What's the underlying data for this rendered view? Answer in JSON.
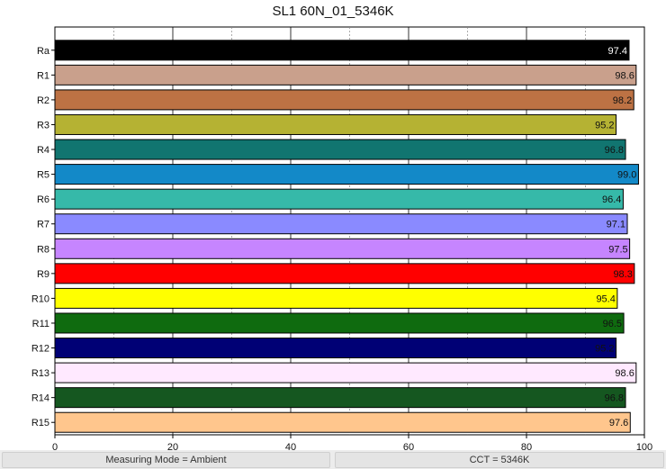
{
  "title": "SL1 60N_01_5346K",
  "status": {
    "left": "Measuring Mode = Ambient",
    "right": "CCT = 5346K"
  },
  "chart_data": {
    "type": "bar",
    "orientation": "horizontal",
    "title": "SL1 60N_01_5346K",
    "xlabel": "",
    "ylabel": "",
    "xlim": [
      0,
      100
    ],
    "x_ticks": [
      0,
      20,
      40,
      60,
      80,
      100
    ],
    "grid": true,
    "categories": [
      "Ra",
      "R1",
      "R2",
      "R3",
      "R4",
      "R5",
      "R6",
      "R7",
      "R8",
      "R9",
      "R10",
      "R11",
      "R12",
      "R13",
      "R14",
      "R15"
    ],
    "values": [
      97.4,
      98.6,
      98.2,
      95.2,
      96.8,
      99.0,
      96.4,
      97.1,
      97.5,
      98.3,
      95.4,
      96.5,
      95.2,
      98.6,
      96.8,
      97.6
    ],
    "value_labels": [
      "97.4",
      "98.6",
      "98.2",
      "95.2",
      "96.8",
      "99.0",
      "96.4",
      "97.1",
      "97.5",
      "98.3",
      "95.4",
      "96.5",
      "95.2",
      "98.6",
      "96.8",
      "97.6"
    ],
    "colors": [
      "#000000",
      "#c9a08c",
      "#bd7244",
      "#b5b233",
      "#117570",
      "#1389c8",
      "#36b9a9",
      "#8a8aff",
      "#c685ff",
      "#ff0000",
      "#ffff00",
      "#0f6b0f",
      "#000075",
      "#ffe9ff",
      "#155720",
      "#ffc68d"
    ],
    "label_colors": [
      "#ffffff",
      "#111111",
      "#111111",
      "#111111",
      "#111111",
      "#111111",
      "#111111",
      "#111111",
      "#111111",
      "#111111",
      "#111111",
      "#111111",
      "#111111",
      "#111111",
      "#111111",
      "#111111"
    ]
  }
}
